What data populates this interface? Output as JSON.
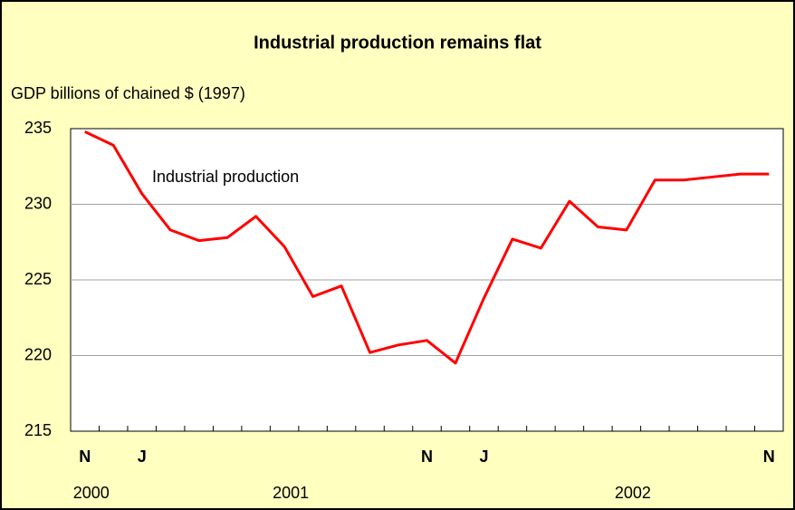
{
  "chart_data": {
    "type": "line",
    "title": "Industrial production remains flat",
    "y_axis_label": "GDP billions of chained $ (1997)",
    "annotation": "Industrial production",
    "categories": [
      "N",
      null,
      "J",
      null,
      null,
      null,
      null,
      null,
      null,
      null,
      null,
      null,
      "N",
      null,
      "J",
      null,
      null,
      null,
      null,
      null,
      null,
      null,
      null,
      null,
      "N"
    ],
    "year_labels": [
      "2000",
      null,
      null,
      null,
      null,
      null,
      null,
      "2001",
      null,
      null,
      null,
      null,
      null,
      null,
      null,
      null,
      null,
      null,
      null,
      "2002",
      null,
      null,
      null,
      null,
      null
    ],
    "series": [
      {
        "name": "Industrial production",
        "color": "#ff0000",
        "values": [
          234.8,
          233.9,
          230.7,
          228.3,
          227.6,
          227.8,
          229.2,
          227.2,
          223.9,
          224.6,
          220.2,
          220.7,
          221.0,
          219.5,
          223.8,
          227.7,
          227.1,
          230.2,
          228.5,
          228.3,
          231.6,
          231.6,
          231.8,
          232.0,
          232.0
        ]
      }
    ],
    "ylim": [
      215,
      235
    ],
    "yticks": [
      215,
      220,
      225,
      230,
      235
    ],
    "grid": true
  }
}
